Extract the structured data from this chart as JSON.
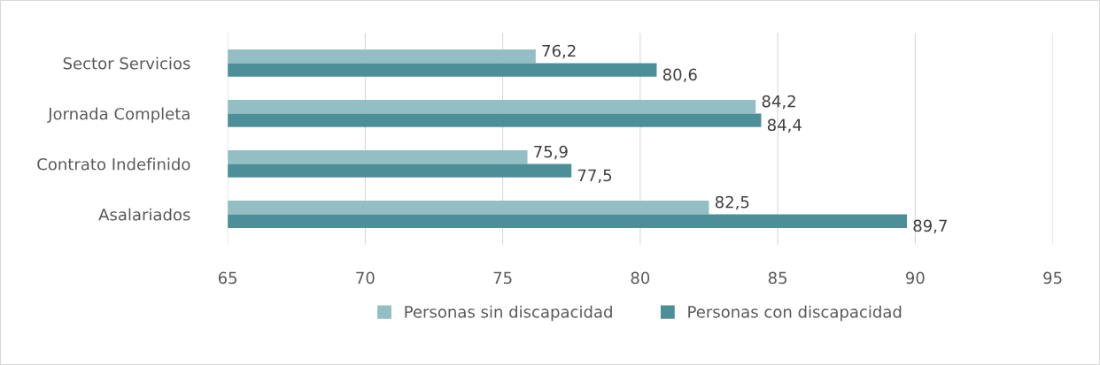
{
  "chart_data": {
    "type": "bar",
    "orientation": "horizontal",
    "categories": [
      "Sector Servicios",
      "Jornada Completa",
      "Contrato Indefinido",
      "Asalariados"
    ],
    "series": [
      {
        "name": "Personas sin discapacidad",
        "color": "#93bfc4",
        "values": [
          76.2,
          84.2,
          75.9,
          82.5
        ],
        "value_labels": [
          "76,2",
          "84,2",
          "75,9",
          "82,5"
        ]
      },
      {
        "name": "Personas con discapacidad",
        "color": "#4d8f98",
        "values": [
          80.6,
          84.4,
          77.5,
          89.7
        ],
        "value_labels": [
          "80,6",
          "84,4",
          "77,5",
          "89,7"
        ]
      }
    ],
    "xlim": [
      65,
      95
    ],
    "xticks": [
      65,
      70,
      75,
      80,
      85,
      90,
      95
    ],
    "grid": "x",
    "legend": "bottom"
  }
}
